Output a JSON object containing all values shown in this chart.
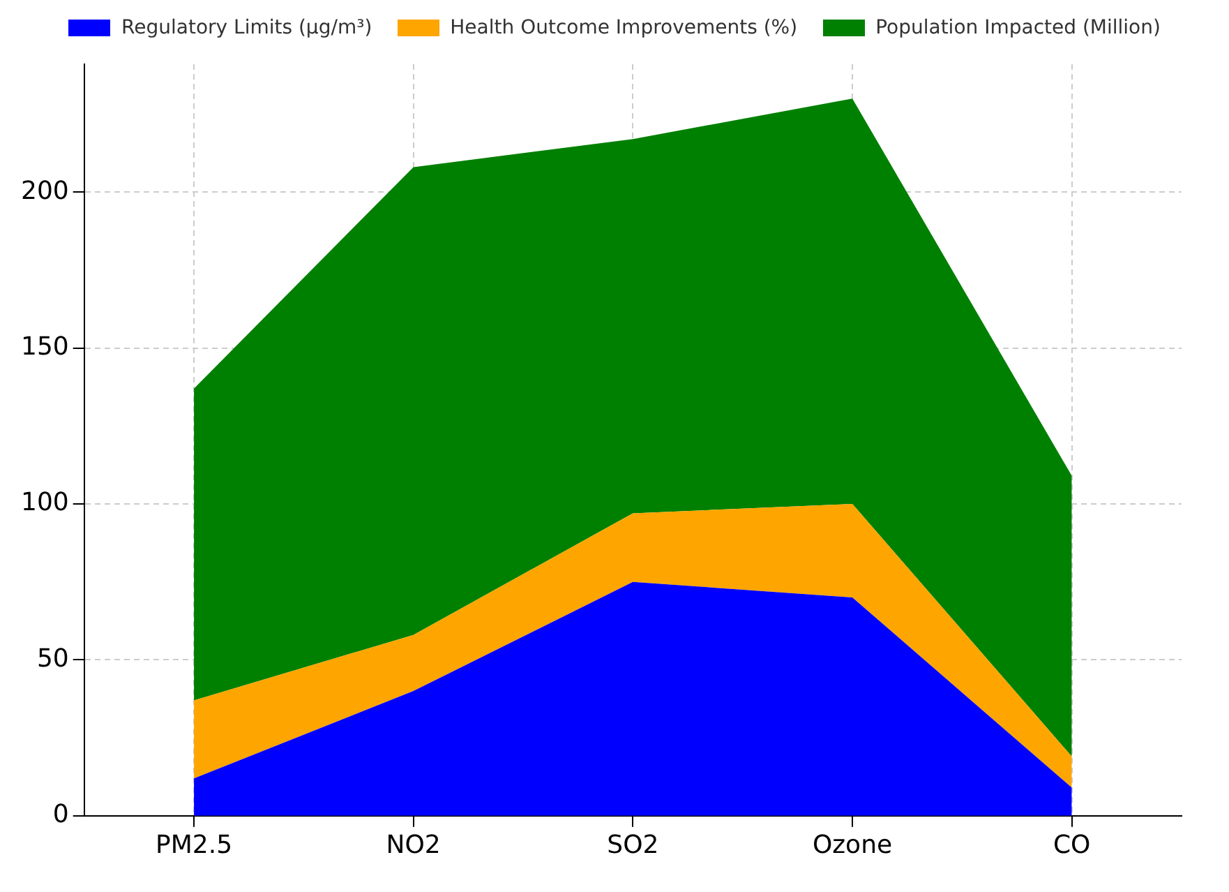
{
  "chart_data": {
    "type": "area",
    "stacked": true,
    "categories": [
      "PM2.5",
      "NO2",
      "SO2",
      "Ozone",
      "CO"
    ],
    "series": [
      {
        "name": "Regulatory Limits (µg/m³)",
        "color": "#0000ff",
        "values": [
          12,
          40,
          75,
          70,
          9
        ]
      },
      {
        "name": "Health Outcome Improvements (%)",
        "color": "#ffa500",
        "values": [
          25,
          18,
          22,
          30,
          10
        ]
      },
      {
        "name": "Population Impacted (Million)",
        "color": "#008000",
        "values": [
          100,
          150,
          120,
          130,
          90
        ]
      }
    ],
    "ylim": [
      0,
      241
    ],
    "yticks": [
      0,
      50,
      100,
      150,
      200
    ],
    "grid": true,
    "legend": "top"
  }
}
